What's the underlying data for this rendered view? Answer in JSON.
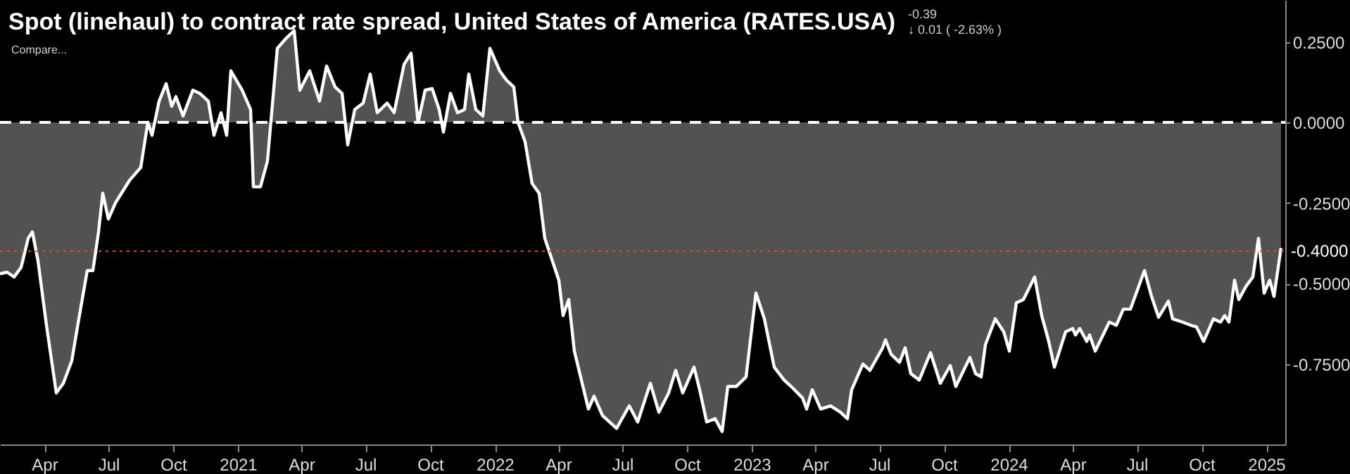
{
  "chart_data": {
    "type": "area",
    "title": "Spot (linehaul) to contract rate spread, United States of America (RATES.USA)",
    "annotations": [
      "Compare...",
      "-0.39",
      "↓ 0.01 ( -2.63% )"
    ],
    "x": [
      "2020-01-29",
      "2020-02-08",
      "2020-02-18",
      "2020-02-28",
      "2020-03-09",
      "2020-03-15",
      "2020-03-23",
      "2020-04-04",
      "2020-04-18",
      "2020-04-28",
      "2020-05-10",
      "2020-05-20",
      "2020-06-01",
      "2020-06-09",
      "2020-06-17",
      "2020-06-23",
      "2020-07-01",
      "2020-07-11",
      "2020-07-31",
      "2020-08-16",
      "2020-08-26",
      "2020-09-01",
      "2020-09-11",
      "2020-09-21",
      "2020-09-29",
      "2020-10-05",
      "2020-10-15",
      "2020-10-29",
      "2020-11-08",
      "2020-11-20",
      "2020-11-28",
      "2020-12-08",
      "2020-12-16",
      "2020-12-22",
      "2021-01-07",
      "2021-01-19",
      "2021-01-23",
      "2021-02-02",
      "2021-02-12",
      "2021-02-18",
      "2021-02-26",
      "2021-03-10",
      "2021-03-22",
      "2021-03-30",
      "2021-04-13",
      "2021-04-27",
      "2021-05-07",
      "2021-05-19",
      "2021-05-29",
      "2021-06-06",
      "2021-06-16",
      "2021-06-28",
      "2021-07-08",
      "2021-07-18",
      "2021-08-01",
      "2021-08-11",
      "2021-08-25",
      "2021-09-04",
      "2021-09-14",
      "2021-09-24",
      "2021-10-04",
      "2021-10-14",
      "2021-10-20",
      "2021-10-30",
      "2021-11-09",
      "2021-11-19",
      "2021-11-25",
      "2021-12-05",
      "2021-12-15",
      "2021-12-25",
      "2022-01-08",
      "2022-01-18",
      "2022-01-28",
      "2022-02-03",
      "2022-02-13",
      "2022-02-23",
      "2022-03-05",
      "2022-03-13",
      "2022-04-02",
      "2022-04-08",
      "2022-04-16",
      "2022-04-24",
      "2022-05-14",
      "2022-05-22",
      "2022-06-03",
      "2022-06-23",
      "2022-07-11",
      "2022-07-23",
      "2022-08-10",
      "2022-08-22",
      "2022-09-05",
      "2022-09-15",
      "2022-09-25",
      "2022-10-11",
      "2022-10-19",
      "2022-10-29",
      "2022-11-10",
      "2022-11-20",
      "2022-11-28",
      "2022-12-10",
      "2022-12-24",
      "2023-01-07",
      "2023-01-19",
      "2023-02-02",
      "2023-02-16",
      "2023-02-26",
      "2023-03-14",
      "2023-03-20",
      "2023-03-28",
      "2023-04-09",
      "2023-04-23",
      "2023-05-07",
      "2023-05-17",
      "2023-05-23",
      "2023-06-08",
      "2023-06-18",
      "2023-07-06",
      "2023-07-10",
      "2023-07-18",
      "2023-07-30",
      "2023-08-07",
      "2023-08-15",
      "2023-08-27",
      "2023-09-12",
      "2023-09-26",
      "2023-10-10",
      "2023-10-18",
      "2023-11-07",
      "2023-11-15",
      "2023-11-23",
      "2023-11-29",
      "2023-12-13",
      "2023-12-25",
      "2024-01-02",
      "2024-01-12",
      "2024-01-22",
      "2024-02-07",
      "2024-02-17",
      "2024-02-27",
      "2024-03-06",
      "2024-03-22",
      "2024-04-01",
      "2024-04-05",
      "2024-04-11",
      "2024-04-21",
      "2024-04-25",
      "2024-05-03",
      "2024-05-23",
      "2024-06-02",
      "2024-06-12",
      "2024-06-22",
      "2024-07-12",
      "2024-07-22",
      "2024-08-01",
      "2024-08-15",
      "2024-08-21",
      "2024-09-04",
      "2024-09-16",
      "2024-09-24",
      "2024-10-04",
      "2024-10-18",
      "2024-10-28",
      "2024-11-03",
      "2024-11-09",
      "2024-11-17",
      "2024-11-23",
      "2024-12-03",
      "2024-12-13",
      "2024-12-21",
      "2024-12-29",
      "2025-01-06",
      "2025-01-12",
      "2025-01-22"
    ],
    "series": [
      {
        "color": "#ffffff",
        "values": [
          -0.47,
          -0.465,
          -0.48,
          -0.45,
          -0.36,
          -0.34,
          -0.43,
          -0.63,
          -0.84,
          -0.81,
          -0.74,
          -0.61,
          -0.46,
          -0.46,
          -0.34,
          -0.22,
          -0.3,
          -0.25,
          -0.18,
          -0.14,
          0.0,
          -0.04,
          0.066,
          0.12,
          0.05,
          0.08,
          0.02,
          0.1,
          0.09,
          0.066,
          -0.04,
          0.03,
          -0.04,
          0.16,
          0.1,
          0.04,
          -0.2,
          -0.2,
          -0.12,
          0.03,
          0.23,
          0.26,
          0.285,
          0.1,
          0.16,
          0.066,
          0.175,
          0.11,
          0.09,
          -0.07,
          0.04,
          0.06,
          0.15,
          0.03,
          0.06,
          0.03,
          0.18,
          0.215,
          0.0,
          0.1,
          0.105,
          0.04,
          -0.03,
          0.09,
          0.03,
          0.04,
          0.15,
          0.04,
          0.02,
          0.23,
          0.16,
          0.13,
          0.11,
          0.0,
          -0.06,
          -0.19,
          -0.22,
          -0.36,
          -0.49,
          -0.6,
          -0.55,
          -0.71,
          -0.89,
          -0.85,
          -0.91,
          -0.95,
          -0.88,
          -0.93,
          -0.81,
          -0.9,
          -0.84,
          -0.77,
          -0.84,
          -0.76,
          -0.83,
          -0.93,
          -0.92,
          -0.96,
          -0.82,
          -0.82,
          -0.79,
          -0.53,
          -0.61,
          -0.76,
          -0.8,
          -0.82,
          -0.855,
          -0.89,
          -0.83,
          -0.89,
          -0.88,
          -0.9,
          -0.92,
          -0.83,
          -0.75,
          -0.77,
          -0.7,
          -0.675,
          -0.72,
          -0.745,
          -0.7,
          -0.78,
          -0.8,
          -0.715,
          -0.81,
          -0.755,
          -0.82,
          -0.73,
          -0.78,
          -0.79,
          -0.69,
          -0.61,
          -0.65,
          -0.71,
          -0.56,
          -0.55,
          -0.48,
          -0.6,
          -0.68,
          -0.76,
          -0.65,
          -0.64,
          -0.66,
          -0.64,
          -0.68,
          -0.66,
          -0.71,
          -0.62,
          -0.63,
          -0.58,
          -0.58,
          -0.46,
          -0.54,
          -0.605,
          -0.555,
          -0.61,
          -0.62,
          -0.63,
          -0.635,
          -0.68,
          -0.61,
          -0.62,
          -0.6,
          -0.62,
          -0.49,
          -0.55,
          -0.51,
          -0.48,
          -0.36,
          -0.53,
          -0.49,
          -0.54,
          -0.39
        ]
      }
    ],
    "xlim": [
      "2020-01-29",
      "2025-01-28"
    ],
    "xticks": [
      {
        "value": "2020-04-01",
        "label": "Apr"
      },
      {
        "value": "2020-07-01",
        "label": "Jul"
      },
      {
        "value": "2020-10-01",
        "label": "Oct"
      },
      {
        "value": "2021-01-01",
        "label": "2021"
      },
      {
        "value": "2021-04-01",
        "label": "Apr"
      },
      {
        "value": "2021-07-01",
        "label": "Jul"
      },
      {
        "value": "2021-10-01",
        "label": "Oct"
      },
      {
        "value": "2022-01-01",
        "label": "2022"
      },
      {
        "value": "2022-04-01",
        "label": "Apr"
      },
      {
        "value": "2022-07-01",
        "label": "Jul"
      },
      {
        "value": "2022-10-01",
        "label": "Oct"
      },
      {
        "value": "2023-01-01",
        "label": "2023"
      },
      {
        "value": "2023-04-01",
        "label": "Apr"
      },
      {
        "value": "2023-07-01",
        "label": "Jul"
      },
      {
        "value": "2023-10-01",
        "label": "Oct"
      },
      {
        "value": "2024-01-01",
        "label": "2024"
      },
      {
        "value": "2024-04-01",
        "label": "Apr"
      },
      {
        "value": "2024-07-01",
        "label": "Jul"
      },
      {
        "value": "2024-10-01",
        "label": "Oct"
      },
      {
        "value": "2025-01-01",
        "label": "2025"
      }
    ],
    "ylim": [
      -1.0,
      0.38
    ],
    "yticks": [
      {
        "value": 0.25,
        "label": "0.2500"
      },
      {
        "value": 0.0,
        "label": "0.0000"
      },
      {
        "value": -0.25,
        "label": "-0.2500"
      },
      {
        "value": -0.5,
        "label": "-0.5000"
      },
      {
        "value": -0.75,
        "label": "-0.7500"
      }
    ],
    "ref_lines": [
      {
        "axis": "y",
        "value": 0.0,
        "color": "#ffffff",
        "line_style": "dashed"
      },
      {
        "axis": "y",
        "value": -0.4,
        "label": "-0.4000",
        "color": "#e8491d",
        "line_style": "dotted"
      }
    ],
    "grid": false
  }
}
